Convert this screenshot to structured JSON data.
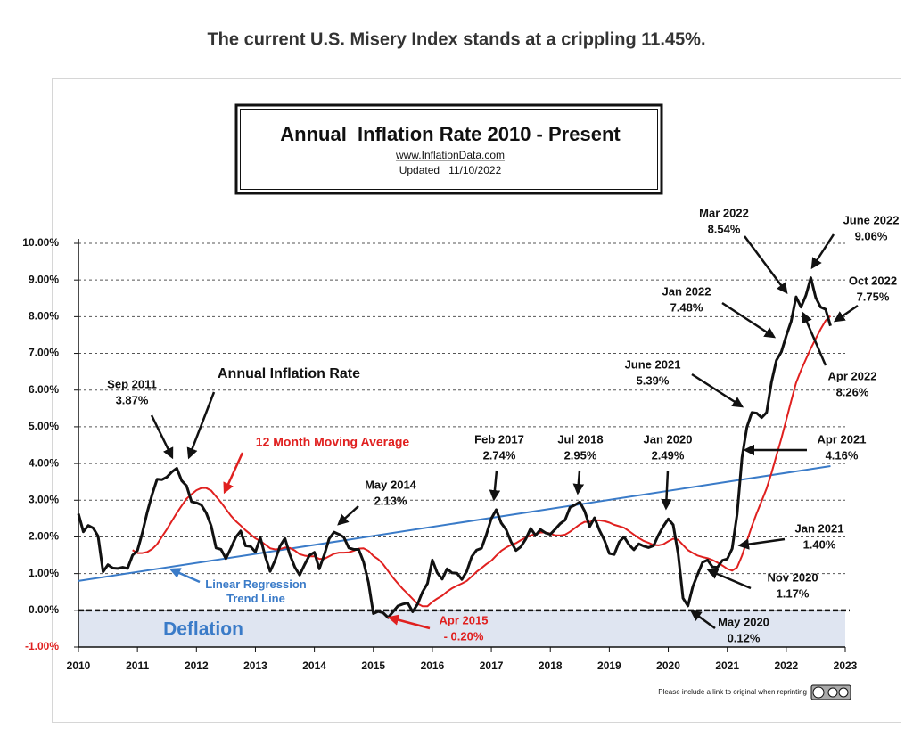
{
  "heading": "The current U.S. Misery Index stands at a crippling 11.45%.",
  "chart_data": {
    "type": "line",
    "title": "Annual  Inflation Rate 2010 - Present",
    "subtitle": "www.InflationData.com",
    "updated": "Updated   11/10/2022",
    "credit": "Please include a link to original when reprinting",
    "xlim": [
      2010,
      2023
    ],
    "ylim": [
      -1,
      10
    ],
    "xticks": [
      2010,
      2011,
      2012,
      2013,
      2014,
      2015,
      2016,
      2017,
      2018,
      2019,
      2020,
      2021,
      2022,
      2023
    ],
    "yticks": [
      {
        "value": -1,
        "label": "-1.00%"
      },
      {
        "value": 0,
        "label": "0.00%"
      },
      {
        "value": 1,
        "label": "1.00%"
      },
      {
        "value": 2,
        "label": "2.00%"
      },
      {
        "value": 3,
        "label": "3.00%"
      },
      {
        "value": 4,
        "label": "4.00%"
      },
      {
        "value": 5,
        "label": "5.00%"
      },
      {
        "value": 6,
        "label": "6.00%"
      },
      {
        "value": 7,
        "label": "7.00%"
      },
      {
        "value": 8,
        "label": "8.00%"
      },
      {
        "value": 9,
        "label": "9.00%"
      },
      {
        "value": 10,
        "label": "10.00%"
      }
    ],
    "grid": true,
    "x": [
      2010,
      2010.083,
      2010.167,
      2010.25,
      2010.333,
      2010.417,
      2010.5,
      2010.583,
      2010.667,
      2010.75,
      2010.833,
      2010.917,
      2011,
      2011.083,
      2011.167,
      2011.25,
      2011.333,
      2011.417,
      2011.5,
      2011.583,
      2011.667,
      2011.75,
      2011.833,
      2011.917,
      2012,
      2012.083,
      2012.167,
      2012.25,
      2012.333,
      2012.417,
      2012.5,
      2012.583,
      2012.667,
      2012.75,
      2012.833,
      2012.917,
      2013,
      2013.083,
      2013.167,
      2013.25,
      2013.333,
      2013.417,
      2013.5,
      2013.583,
      2013.667,
      2013.75,
      2013.833,
      2013.917,
      2014,
      2014.083,
      2014.167,
      2014.25,
      2014.333,
      2014.417,
      2014.5,
      2014.583,
      2014.667,
      2014.75,
      2014.833,
      2014.917,
      2015,
      2015.083,
      2015.167,
      2015.25,
      2015.333,
      2015.417,
      2015.5,
      2015.583,
      2015.667,
      2015.75,
      2015.833,
      2015.917,
      2016,
      2016.083,
      2016.167,
      2016.25,
      2016.333,
      2016.417,
      2016.5,
      2016.583,
      2016.667,
      2016.75,
      2016.833,
      2016.917,
      2017,
      2017.083,
      2017.167,
      2017.25,
      2017.333,
      2017.417,
      2017.5,
      2017.583,
      2017.667,
      2017.75,
      2017.833,
      2017.917,
      2018,
      2018.083,
      2018.167,
      2018.25,
      2018.333,
      2018.417,
      2018.5,
      2018.583,
      2018.667,
      2018.75,
      2018.833,
      2018.917,
      2019,
      2019.083,
      2019.167,
      2019.25,
      2019.333,
      2019.417,
      2019.5,
      2019.583,
      2019.667,
      2019.75,
      2019.833,
      2019.917,
      2020,
      2020.083,
      2020.167,
      2020.25,
      2020.333,
      2020.417,
      2020.5,
      2020.583,
      2020.667,
      2020.75,
      2020.833,
      2020.917,
      2021,
      2021.083,
      2021.167,
      2021.25,
      2021.333,
      2021.417,
      2021.5,
      2021.583,
      2021.667,
      2021.75,
      2021.833,
      2021.917,
      2022,
      2022.083,
      2022.167,
      2022.25,
      2022.333,
      2022.417,
      2022.5,
      2022.583,
      2022.667,
      2022.75
    ],
    "series": [
      {
        "name": "Annual Inflation Rate",
        "color": "#111111",
        "values": [
          2.63,
          2.14,
          2.31,
          2.24,
          2.02,
          1.05,
          1.24,
          1.15,
          1.14,
          1.17,
          1.14,
          1.5,
          1.63,
          2.11,
          2.68,
          3.16,
          3.57,
          3.56,
          3.63,
          3.77,
          3.87,
          3.53,
          3.39,
          2.96,
          2.93,
          2.87,
          2.65,
          2.3,
          1.7,
          1.66,
          1.41,
          1.69,
          1.99,
          2.16,
          1.76,
          1.74,
          1.59,
          1.98,
          1.47,
          1.06,
          1.36,
          1.75,
          1.96,
          1.52,
          1.18,
          0.96,
          1.24,
          1.5,
          1.58,
          1.13,
          1.51,
          1.95,
          2.13,
          2.07,
          1.99,
          1.7,
          1.66,
          1.66,
          1.32,
          0.76,
          -0.09,
          -0.03,
          -0.07,
          -0.2,
          -0.04,
          0.12,
          0.17,
          0.2,
          -0.04,
          0.17,
          0.5,
          0.73,
          1.37,
          1.02,
          0.85,
          1.13,
          1.02,
          1.01,
          0.84,
          1.06,
          1.46,
          1.64,
          1.69,
          2.07,
          2.5,
          2.74,
          2.38,
          2.2,
          1.87,
          1.63,
          1.73,
          1.94,
          2.23,
          2.04,
          2.2,
          2.11,
          2.07,
          2.21,
          2.36,
          2.46,
          2.8,
          2.87,
          2.95,
          2.7,
          2.28,
          2.52,
          2.18,
          1.91,
          1.55,
          1.52,
          1.86,
          2.0,
          1.79,
          1.65,
          1.81,
          1.75,
          1.71,
          1.76,
          2.05,
          2.29,
          2.49,
          2.33,
          1.54,
          0.33,
          0.12,
          0.65,
          0.99,
          1.31,
          1.37,
          1.18,
          1.17,
          1.36,
          1.4,
          1.68,
          2.62,
          4.16,
          4.99,
          5.39,
          5.37,
          5.25,
          5.39,
          6.22,
          6.81,
          7.04,
          7.48,
          7.87,
          8.54,
          8.26,
          8.58,
          9.06,
          8.52,
          8.26,
          8.2,
          7.75
        ]
      },
      {
        "name": "12 Month Moving Average",
        "color": "#e0201f",
        "values": [
          null,
          null,
          null,
          null,
          null,
          null,
          null,
          null,
          null,
          null,
          null,
          1.64,
          1.56,
          1.56,
          1.59,
          1.67,
          1.8,
          2.01,
          2.21,
          2.43,
          2.65,
          2.85,
          3.04,
          3.16,
          3.27,
          3.33,
          3.33,
          3.26,
          3.1,
          2.94,
          2.76,
          2.58,
          2.43,
          2.31,
          2.18,
          2.07,
          1.96,
          1.89,
          1.79,
          1.69,
          1.66,
          1.67,
          1.71,
          1.7,
          1.63,
          1.53,
          1.49,
          1.47,
          1.47,
          1.4,
          1.4,
          1.47,
          1.54,
          1.57,
          1.57,
          1.58,
          1.62,
          1.68,
          1.69,
          1.62,
          1.48,
          1.39,
          1.25,
          1.07,
          0.89,
          0.73,
          0.58,
          0.45,
          0.31,
          0.18,
          0.11,
          0.11,
          0.23,
          0.32,
          0.4,
          0.51,
          0.6,
          0.67,
          0.73,
          0.8,
          0.92,
          1.05,
          1.15,
          1.26,
          1.35,
          1.49,
          1.62,
          1.71,
          1.78,
          1.83,
          1.91,
          1.98,
          2.04,
          2.08,
          2.12,
          2.12,
          2.09,
          2.04,
          2.04,
          2.06,
          2.14,
          2.24,
          2.34,
          2.41,
          2.41,
          2.45,
          2.45,
          2.43,
          2.39,
          2.33,
          2.29,
          2.25,
          2.16,
          2.06,
          1.97,
          1.89,
          1.84,
          1.78,
          1.77,
          1.8,
          1.88,
          1.95,
          1.92,
          1.78,
          1.64,
          1.56,
          1.49,
          1.45,
          1.42,
          1.37,
          1.3,
          1.22,
          1.13,
          1.08,
          1.17,
          1.49,
          1.89,
          2.29,
          2.65,
          2.98,
          3.32,
          3.74,
          4.21,
          4.68,
          5.19,
          5.7,
          6.2,
          6.54,
          6.84,
          7.14,
          7.4,
          7.66,
          7.89,
          8.02
        ]
      }
    ],
    "trend_line": {
      "name": "Linear Regression Trend Line",
      "color": "#3a7bc8",
      "x": [
        2010,
        2022.75
      ],
      "values": [
        0.8,
        3.93
      ]
    },
    "deflation": {
      "label": "Deflation",
      "color": "#dfe5f1",
      "text_color": "#3a7bc8"
    },
    "annotations": [
      {
        "lines": [
          "Sep 2011",
          "3.87%"
        ]
      },
      {
        "lines": [
          "May 2014",
          "2.13%"
        ]
      },
      {
        "lines": [
          "Apr 2015",
          "- 0.20%"
        ],
        "color": "#e0201f"
      },
      {
        "lines": [
          "Feb 2017",
          "2.74%"
        ]
      },
      {
        "lines": [
          "Jul 2018",
          "2.95%"
        ]
      },
      {
        "lines": [
          "Jan 2020",
          "2.49%"
        ]
      },
      {
        "lines": [
          "June 2021",
          "5.39%"
        ]
      },
      {
        "lines": [
          "Jan 2022",
          "7.48%"
        ]
      },
      {
        "lines": [
          "Mar 2022",
          "8.54%"
        ]
      },
      {
        "lines": [
          "June 2022",
          "9.06%"
        ]
      },
      {
        "lines": [
          "Oct 2022",
          "7.75%"
        ]
      },
      {
        "lines": [
          "Apr 2022",
          "8.26%"
        ]
      },
      {
        "lines": [
          "Apr 2021",
          "4.16%"
        ]
      },
      {
        "lines": [
          "Jan 2021",
          "1.40%"
        ]
      },
      {
        "lines": [
          "Nov 2020",
          "1.17%"
        ]
      },
      {
        "lines": [
          "May 2020",
          "0.12%"
        ]
      }
    ]
  }
}
